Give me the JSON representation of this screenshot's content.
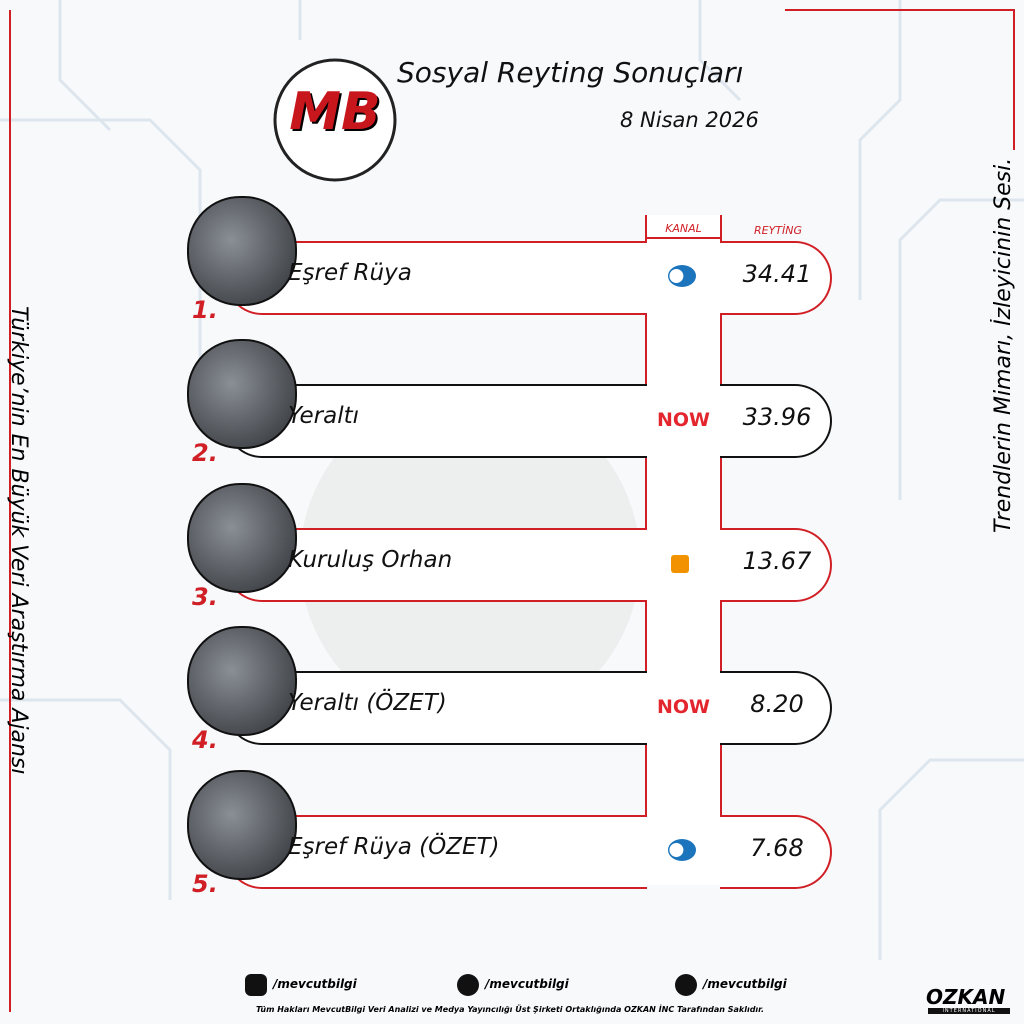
{
  "header": {
    "logo": "MB",
    "title": "Sosyal Reyting Sonuçları",
    "date": "8 Nisan 2026"
  },
  "side_left": "Türkiye’nin En Büyük Veri Araştırma Ajansı",
  "side_right": "Trendlerin Mimarı, İzleyicinin Sesi.",
  "table": {
    "columns": [
      "KANAL",
      "REYTİNG"
    ],
    "rows": [
      {
        "rank": "1.",
        "title": "Eşref Rüya",
        "rating": "34.41"
      },
      {
        "rank": "2.",
        "title": "Yeraltı",
        "channel": "NOW",
        "rating": "33.96"
      },
      {
        "rank": "3.",
        "title": "Kuruluş Orhan",
        "rating": "13.67"
      },
      {
        "rank": "4.",
        "title": "Yeraltı (ÖZET)",
        "channel": "NOW",
        "rating": "8.20"
      },
      {
        "rank": "5.",
        "title": "Eşref Rüya (ÖZET)",
        "rating": "7.68"
      }
    ]
  },
  "footer": {
    "social": [
      "/mevcutbilgi",
      "/mevcutbilgi",
      "/mevcutbilgi"
    ],
    "copyright": "Tüm Hakları MevcutBilgi Veri Analizi ve Medya Yayıncılığı Üst Şirketi Ortaklığında OZKAN İNC Tarafından Saklıdır.",
    "brand": "OZKAN",
    "brand_sub": "INTERNATIONAL"
  }
}
